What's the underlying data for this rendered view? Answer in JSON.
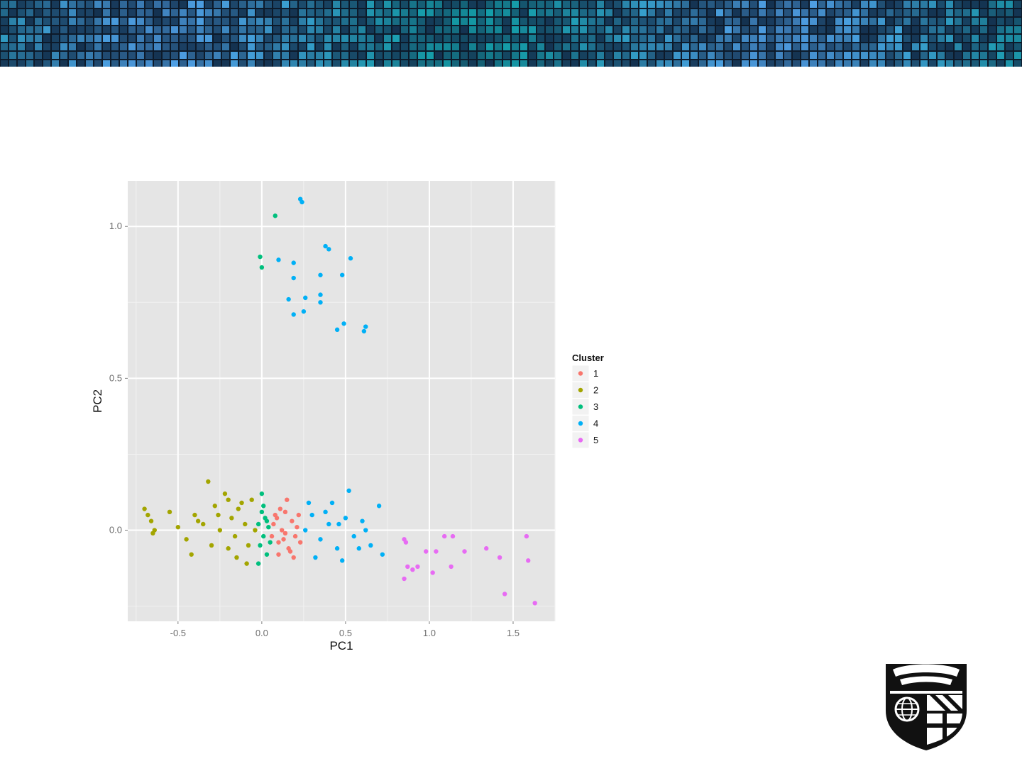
{
  "chart_data": {
    "type": "scatter",
    "xlabel": "PC1",
    "ylabel": "PC2",
    "xlim": [
      -0.8,
      1.75
    ],
    "ylim": [
      -0.3,
      1.15
    ],
    "x_ticks": [
      -0.5,
      0.0,
      0.5,
      1.0,
      1.5
    ],
    "x_tick_labels": [
      "-0.5",
      "0.0",
      "0.5",
      "1.0",
      "1.5"
    ],
    "y_ticks": [
      0.0,
      0.5,
      1.0
    ],
    "y_tick_labels": [
      "0.0",
      "0.5",
      "1.0"
    ],
    "grid": true,
    "legend": {
      "title": "Cluster",
      "placement": "right"
    },
    "series": [
      {
        "name": "1",
        "color": "#F8766D",
        "points": [
          [
            0.06,
            -0.02
          ],
          [
            0.08,
            0.05
          ],
          [
            0.1,
            -0.04
          ],
          [
            0.12,
            0.0
          ],
          [
            0.14,
            0.06
          ],
          [
            0.16,
            -0.06
          ],
          [
            0.18,
            0.03
          ],
          [
            0.2,
            -0.02
          ],
          [
            0.22,
            0.05
          ],
          [
            0.15,
            0.1
          ],
          [
            0.1,
            -0.08
          ],
          [
            0.19,
            -0.09
          ],
          [
            0.07,
            0.02
          ],
          [
            0.13,
            -0.03
          ],
          [
            0.21,
            0.01
          ],
          [
            0.09,
            0.04
          ],
          [
            0.17,
            -0.07
          ],
          [
            0.11,
            0.07
          ],
          [
            0.23,
            -0.04
          ],
          [
            0.14,
            -0.01
          ]
        ]
      },
      {
        "name": "2",
        "color": "#A3A500",
        "points": [
          [
            -0.7,
            0.07
          ],
          [
            -0.68,
            0.05
          ],
          [
            -0.66,
            0.03
          ],
          [
            -0.65,
            -0.01
          ],
          [
            -0.64,
            0.0
          ],
          [
            -0.55,
            0.06
          ],
          [
            -0.5,
            0.01
          ],
          [
            -0.45,
            -0.03
          ],
          [
            -0.4,
            0.05
          ],
          [
            -0.35,
            0.02
          ],
          [
            -0.32,
            0.16
          ],
          [
            -0.3,
            -0.05
          ],
          [
            -0.28,
            0.08
          ],
          [
            -0.25,
            0.0
          ],
          [
            -0.22,
            0.12
          ],
          [
            -0.2,
            -0.06
          ],
          [
            -0.18,
            0.04
          ],
          [
            -0.15,
            -0.09
          ],
          [
            -0.12,
            0.09
          ],
          [
            -0.1,
            0.02
          ],
          [
            -0.08,
            -0.05
          ],
          [
            -0.06,
            0.1
          ],
          [
            -0.04,
            0.0
          ],
          [
            -0.42,
            -0.08
          ],
          [
            -0.38,
            0.03
          ],
          [
            -0.26,
            0.05
          ],
          [
            -0.16,
            -0.02
          ],
          [
            -0.14,
            0.07
          ],
          [
            -0.09,
            -0.11
          ],
          [
            -0.2,
            0.1
          ]
        ]
      },
      {
        "name": "3",
        "color": "#00BF7D",
        "points": [
          [
            -0.01,
            0.9
          ],
          [
            0.0,
            0.865
          ],
          [
            0.08,
            1.035
          ],
          [
            -0.02,
            0.02
          ],
          [
            -0.01,
            -0.05
          ],
          [
            0.0,
            0.06
          ],
          [
            0.01,
            -0.02
          ],
          [
            0.02,
            0.04
          ],
          [
            0.03,
            -0.08
          ],
          [
            0.04,
            0.01
          ],
          [
            -0.02,
            -0.11
          ],
          [
            0.0,
            0.12
          ],
          [
            0.05,
            -0.04
          ],
          [
            0.01,
            0.08
          ],
          [
            0.03,
            0.03
          ]
        ]
      },
      {
        "name": "4",
        "color": "#00B0F6",
        "points": [
          [
            0.23,
            1.09
          ],
          [
            0.24,
            1.08
          ],
          [
            0.38,
            0.935
          ],
          [
            0.4,
            0.925
          ],
          [
            0.53,
            0.895
          ],
          [
            0.1,
            0.89
          ],
          [
            0.19,
            0.88
          ],
          [
            0.35,
            0.84
          ],
          [
            0.48,
            0.84
          ],
          [
            0.19,
            0.83
          ],
          [
            0.35,
            0.775
          ],
          [
            0.26,
            0.765
          ],
          [
            0.16,
            0.76
          ],
          [
            0.35,
            0.75
          ],
          [
            0.25,
            0.72
          ],
          [
            0.19,
            0.71
          ],
          [
            0.49,
            0.68
          ],
          [
            0.62,
            0.67
          ],
          [
            0.45,
            0.66
          ],
          [
            0.61,
            0.655
          ],
          [
            0.26,
            0.0
          ],
          [
            0.3,
            0.05
          ],
          [
            0.35,
            -0.03
          ],
          [
            0.4,
            0.02
          ],
          [
            0.45,
            -0.06
          ],
          [
            0.5,
            0.04
          ],
          [
            0.52,
            0.13
          ],
          [
            0.55,
            -0.02
          ],
          [
            0.6,
            0.03
          ],
          [
            0.65,
            -0.05
          ],
          [
            0.7,
            0.08
          ],
          [
            0.72,
            -0.08
          ],
          [
            0.28,
            0.09
          ],
          [
            0.32,
            -0.09
          ],
          [
            0.42,
            0.09
          ],
          [
            0.48,
            -0.1
          ],
          [
            0.58,
            -0.06
          ],
          [
            0.38,
            0.06
          ],
          [
            0.46,
            0.02
          ],
          [
            0.62,
            0.0
          ]
        ]
      },
      {
        "name": "5",
        "color": "#E76BF3",
        "points": [
          [
            0.85,
            -0.03
          ],
          [
            0.86,
            -0.04
          ],
          [
            0.87,
            -0.12
          ],
          [
            0.85,
            -0.16
          ],
          [
            0.9,
            -0.13
          ],
          [
            0.93,
            -0.12
          ],
          [
            0.98,
            -0.07
          ],
          [
            1.02,
            -0.14
          ],
          [
            1.04,
            -0.07
          ],
          [
            1.09,
            -0.02
          ],
          [
            1.14,
            -0.02
          ],
          [
            1.13,
            -0.12
          ],
          [
            1.21,
            -0.07
          ],
          [
            1.34,
            -0.06
          ],
          [
            1.42,
            -0.09
          ],
          [
            1.45,
            -0.21
          ],
          [
            1.58,
            -0.02
          ],
          [
            1.59,
            -0.1
          ],
          [
            1.63,
            -0.24
          ]
        ]
      }
    ]
  }
}
